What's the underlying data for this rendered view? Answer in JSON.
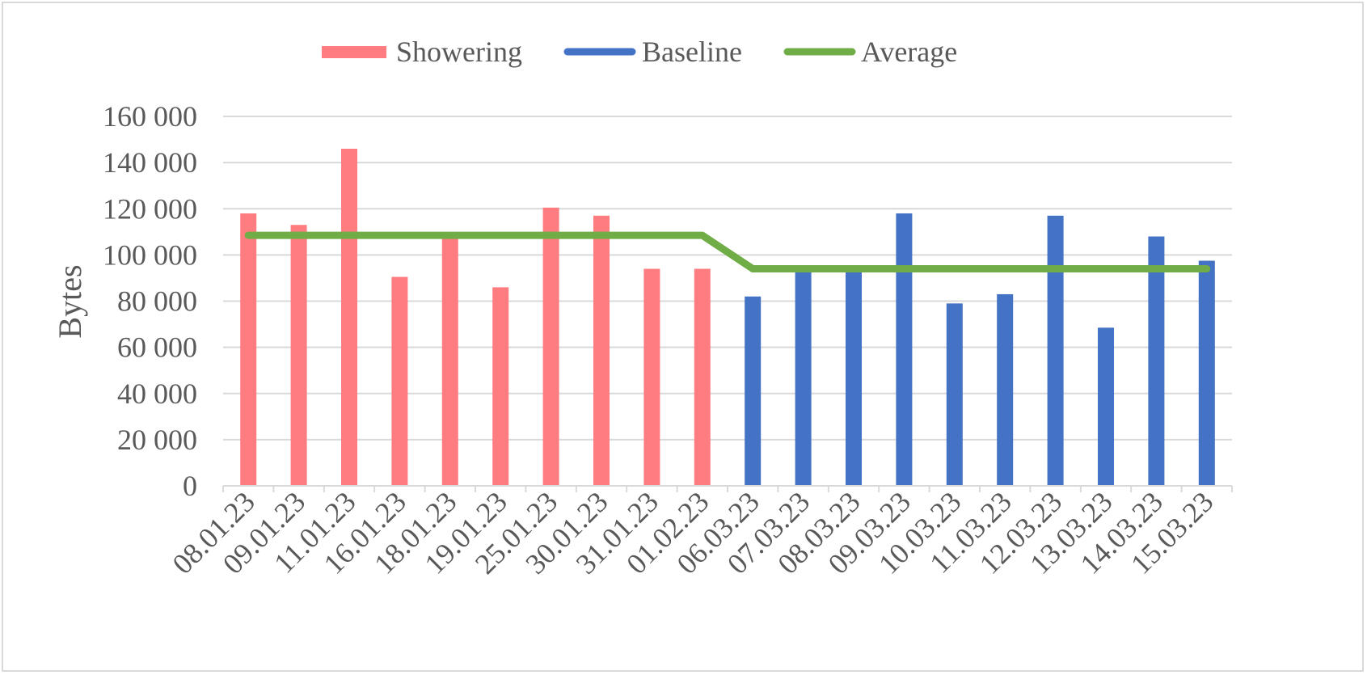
{
  "chart_data": {
    "type": "bar",
    "title": "",
    "xlabel": "",
    "ylabel": "Bytes",
    "ylim": [
      0,
      160000
    ],
    "yticks": [
      0,
      20000,
      40000,
      60000,
      80000,
      100000,
      120000,
      140000,
      160000
    ],
    "ytick_labels": [
      "0",
      "20 000",
      "40 000",
      "60 000",
      "80 000",
      "100 000",
      "120 000",
      "140 000",
      "160 000"
    ],
    "grid": true,
    "legend_position": "top-center",
    "categories": [
      "08.01.23",
      "09.01.23",
      "11.01.23",
      "16.01.23",
      "18.01.23",
      "19.01.23",
      "25.01.23",
      "30.01.23",
      "31.01.23",
      "01.02.23",
      "06.03.23",
      "07.03.23",
      "08.03.23",
      "09.03.23",
      "10.03.23",
      "11.03.23",
      "12.03.23",
      "13.03.23",
      "14.03.23",
      "15.03.23"
    ],
    "series": [
      {
        "name": "Showering",
        "type": "bar",
        "color": "#ff7c80",
        "values": [
          118000,
          113000,
          146000,
          90500,
          108000,
          86000,
          120500,
          117000,
          94000,
          94000,
          null,
          null,
          null,
          null,
          null,
          null,
          null,
          null,
          null,
          null
        ]
      },
      {
        "name": "Baseline",
        "type": "bar",
        "color": "#4472c4",
        "values": [
          null,
          null,
          null,
          null,
          null,
          null,
          null,
          null,
          null,
          null,
          82000,
          94000,
          94000,
          118000,
          79000,
          83000,
          117000,
          68500,
          108000,
          97500
        ]
      },
      {
        "name": "Average",
        "type": "line",
        "color": "#70ad47",
        "values": [
          108500,
          108500,
          108500,
          108500,
          108500,
          108500,
          108500,
          108500,
          108500,
          108500,
          94000,
          94000,
          94000,
          94000,
          94000,
          94000,
          94000,
          94000,
          94000,
          94000
        ]
      }
    ]
  }
}
